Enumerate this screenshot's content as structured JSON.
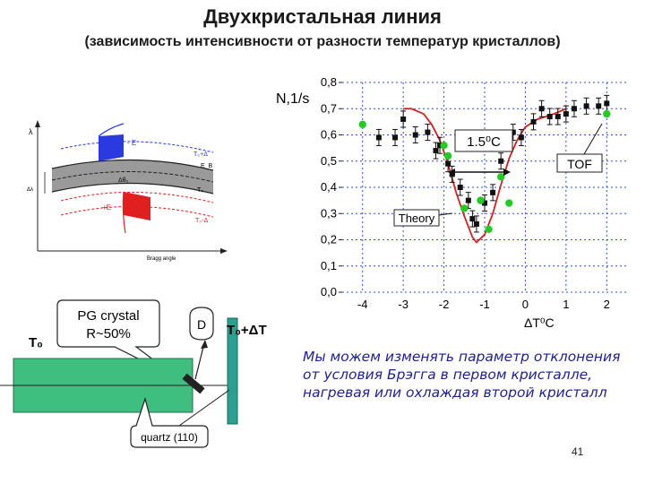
{
  "title": "Двухкристальная линия",
  "subtitle": "(зависимость интенсивности от разности температур кристаллов)",
  "note": "Мы можем изменять параметр отклонения от условия Брэгга в первом кристалле, нагревая или охлаждая второй кристалл",
  "page_number": "41",
  "colors": {
    "theory": "#d42020",
    "tof": "#22cc22",
    "data": "#111111",
    "grid": "#3050c8",
    "note": "#1f1f8f",
    "teal": "#2aa090"
  },
  "scheme": {
    "labels": {
      "lambda": "λ",
      "minus_e": "- E",
      "t0_plus_delta": "T₀+Δ",
      "e_b": "E_B",
      "delta_theta": "Δθ₀",
      "t0": "T₀",
      "plus_e": "+E",
      "t0_minus_delta": "T₀-Δ",
      "bragg_angle": "Bragg angle",
      "delta_lambda": "Δλ"
    }
  },
  "setup": {
    "t0_label": "T₀",
    "pg_label_1": "PG crystal",
    "pg_label_2": "R~50%",
    "detector_label": "D",
    "t0_dt_label": "T₀+ΔT",
    "quartz_label": "quartz (110)"
  },
  "chart_data": {
    "type": "scatter",
    "ylabel": "N,1/s",
    "xlabel": "ΔT⁰C",
    "xlim": [
      -4.5,
      2.5
    ],
    "ylim": [
      0.0,
      0.8
    ],
    "x_ticks": [
      "-4",
      "-3",
      "-2",
      "-1",
      "0",
      "1",
      "2"
    ],
    "y_ticks": [
      "0,0",
      "0,1",
      "0,2",
      "0,3",
      "0,4",
      "0,5",
      "0,6",
      "0,7",
      "0,8"
    ],
    "grid": true,
    "annotations": {
      "width": "1.5⁰C",
      "theory": "Theory",
      "tof": "TOF"
    },
    "series": [
      {
        "style": "data",
        "points": [
          [
            -3.6,
            0.59
          ],
          [
            -3.2,
            0.59
          ],
          [
            -3.0,
            0.66
          ],
          [
            -2.7,
            0.6
          ],
          [
            -2.4,
            0.61
          ],
          [
            -2.2,
            0.54
          ],
          [
            -2.1,
            0.56
          ],
          [
            -1.9,
            0.49
          ],
          [
            -1.8,
            0.45
          ],
          [
            -1.6,
            0.4
          ],
          [
            -1.4,
            0.35
          ],
          [
            -1.3,
            0.28
          ],
          [
            -1.2,
            0.26
          ],
          [
            -1.0,
            0.34
          ],
          [
            -0.8,
            0.38
          ],
          [
            -0.6,
            0.5
          ],
          [
            -0.3,
            0.61
          ],
          [
            -0.1,
            0.59
          ],
          [
            0.2,
            0.65
          ],
          [
            0.4,
            0.7
          ],
          [
            0.6,
            0.67
          ],
          [
            0.8,
            0.67
          ],
          [
            1.0,
            0.68
          ],
          [
            1.2,
            0.7
          ],
          [
            1.5,
            0.71
          ],
          [
            1.8,
            0.71
          ],
          [
            2.0,
            0.72
          ]
        ]
      },
      {
        "style": "tof",
        "points": [
          [
            -4.0,
            0.64
          ],
          [
            -2.0,
            0.56
          ],
          [
            -1.9,
            0.52
          ],
          [
            -1.5,
            0.32
          ],
          [
            -1.1,
            0.35
          ],
          [
            -0.9,
            0.24
          ],
          [
            -0.4,
            0.34
          ],
          [
            -0.6,
            0.44
          ],
          [
            2.0,
            0.68
          ]
        ]
      },
      {
        "style": "theory",
        "points": [
          [
            -3.0,
            0.7
          ],
          [
            -2.8,
            0.7
          ],
          [
            -2.5,
            0.68
          ],
          [
            -2.3,
            0.64
          ],
          [
            -2.1,
            0.58
          ],
          [
            -1.9,
            0.49
          ],
          [
            -1.7,
            0.38
          ],
          [
            -1.5,
            0.29
          ],
          [
            -1.3,
            0.21
          ],
          [
            -1.2,
            0.19
          ],
          [
            -1.0,
            0.22
          ],
          [
            -0.8,
            0.3
          ],
          [
            -0.6,
            0.41
          ],
          [
            -0.4,
            0.51
          ],
          [
            -0.2,
            0.58
          ],
          [
            0.0,
            0.63
          ],
          [
            0.3,
            0.66
          ],
          [
            0.7,
            0.68
          ],
          [
            1.0,
            0.7
          ]
        ]
      }
    ]
  }
}
